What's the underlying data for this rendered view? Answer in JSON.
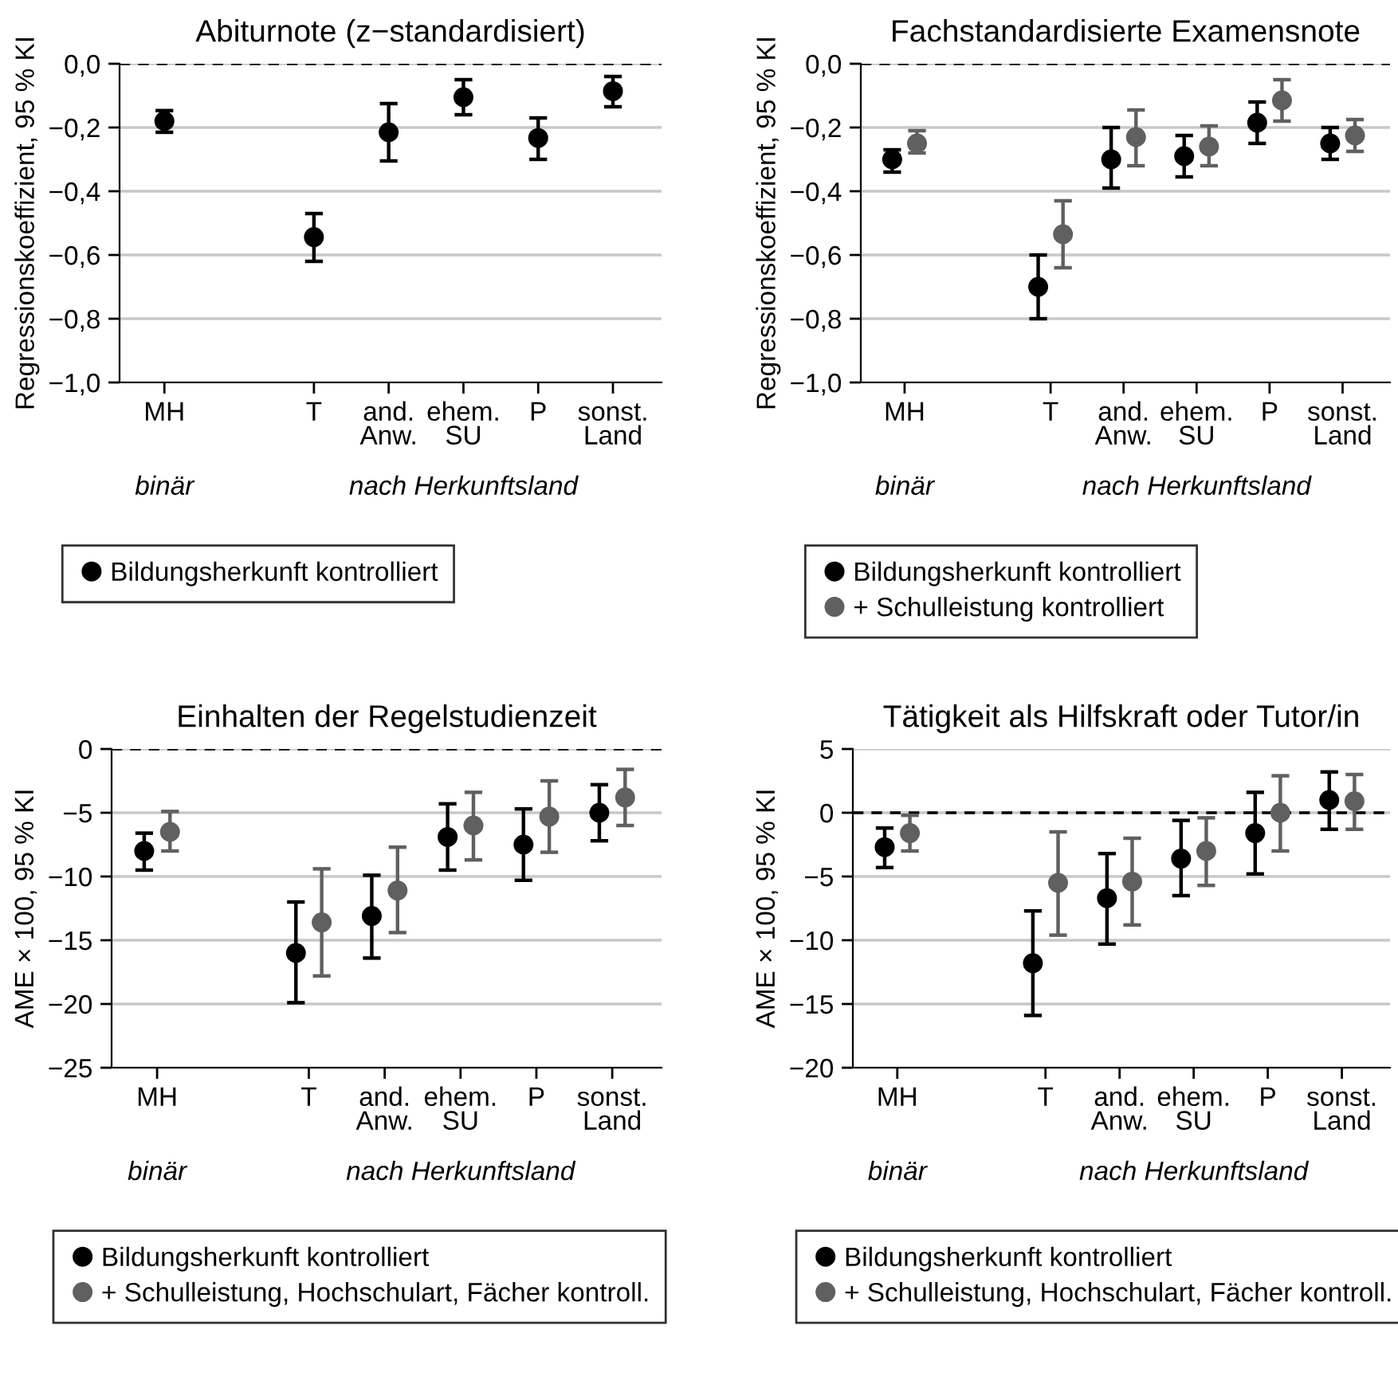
{
  "chart_data": [
    {
      "type": "scatter",
      "title": "Abiturnote (z−standardisiert)",
      "ylabel": "Regressionskoeffizient, 95 % KI",
      "categories": [
        "MH",
        null,
        "T",
        "and.\nAnw.",
        "ehem.\nSU",
        "P",
        "sonst.\nLand"
      ],
      "series": [
        {
          "name": "Bildungsherkunft kontrolliert",
          "color": "#000000",
          "values": [
            -0.18,
            null,
            -0.544,
            -0.215,
            -0.105,
            -0.233,
            -0.086
          ],
          "errors": [
            [
              -0.215,
              -0.147
            ],
            null,
            [
              -0.62,
              -0.47
            ],
            [
              -0.305,
              -0.125
            ],
            [
              -0.16,
              -0.05
            ],
            [
              -0.3,
              -0.17
            ],
            [
              -0.135,
              -0.04
            ]
          ]
        }
      ],
      "ylim": [
        -1.0,
        0.0
      ],
      "yticks": [
        {
          "value": -1.0,
          "label": "−1,0"
        },
        {
          "value": -0.8,
          "label": "−0,8"
        },
        {
          "value": -0.6,
          "label": "−0,6"
        },
        {
          "value": -0.4,
          "label": "−0,4"
        },
        {
          "value": -0.2,
          "label": "−0,2"
        },
        {
          "value": 0.0,
          "label": "0,0"
        }
      ],
      "ref_lines": [
        {
          "axis": "y",
          "value": 0,
          "line_style": "dashed",
          "color": "#000000"
        }
      ],
      "grid": "y",
      "legend": "bottom",
      "marker": "circle",
      "annotations": [
        "binär",
        "nach Herkunftsland"
      ]
    },
    {
      "type": "scatter",
      "title": "Fachstandardisierte Examensnote",
      "ylabel": "Regressionskoeffizient, 95 % KI",
      "categories": [
        "MH",
        null,
        "T",
        "and.\nAnw.",
        "ehem.\nSU",
        "P",
        "sonst.\nLand"
      ],
      "series": [
        {
          "name": "Bildungsherkunft kontrolliert",
          "color": "#000000",
          "values": [
            -0.3,
            null,
            -0.7,
            -0.3,
            -0.29,
            -0.185,
            -0.25
          ],
          "errors": [
            [
              -0.34,
              -0.27
            ],
            null,
            [
              -0.8,
              -0.6
            ],
            [
              -0.39,
              -0.2
            ],
            [
              -0.355,
              -0.225
            ],
            [
              -0.25,
              -0.12
            ],
            [
              -0.3,
              -0.2
            ]
          ]
        },
        {
          "name": "+ Schulleistung kontrolliert",
          "color": "#606060",
          "values": [
            -0.25,
            null,
            -0.535,
            -0.23,
            -0.26,
            -0.115,
            -0.225
          ],
          "errors": [
            [
              -0.28,
              -0.21
            ],
            null,
            [
              -0.64,
              -0.43
            ],
            [
              -0.32,
              -0.145
            ],
            [
              -0.32,
              -0.195
            ],
            [
              -0.18,
              -0.05
            ],
            [
              -0.275,
              -0.175
            ]
          ]
        }
      ],
      "ylim": [
        -1.0,
        0.0
      ],
      "yticks": [
        {
          "value": -1.0,
          "label": "−1,0"
        },
        {
          "value": -0.8,
          "label": "−0,8"
        },
        {
          "value": -0.6,
          "label": "−0,6"
        },
        {
          "value": -0.4,
          "label": "−0,4"
        },
        {
          "value": -0.2,
          "label": "−0,2"
        },
        {
          "value": 0.0,
          "label": "0,0"
        }
      ],
      "ref_lines": [
        {
          "axis": "y",
          "value": 0,
          "line_style": "dashed",
          "color": "#000000"
        }
      ],
      "grid": "y",
      "legend": "bottom",
      "marker": "circle",
      "annotations": [
        "binär",
        "nach Herkunftsland"
      ]
    },
    {
      "type": "scatter",
      "title": "Einhalten der Regelstudienzeit",
      "ylabel": "AME × 100, 95 % KI",
      "categories": [
        "MH",
        null,
        "T",
        "and.\nAnw.",
        "ehem.\nSU",
        "P",
        "sonst.\nLand"
      ],
      "series": [
        {
          "name": "Bildungsherkunft kontrolliert",
          "color": "#000000",
          "values": [
            -8.0,
            null,
            -16.0,
            -13.1,
            -6.9,
            -7.5,
            -5.0
          ],
          "errors": [
            [
              -9.5,
              -6.6
            ],
            null,
            [
              -19.9,
              -12.0
            ],
            [
              -16.4,
              -9.9
            ],
            [
              -9.5,
              -4.3
            ],
            [
              -10.3,
              -4.7
            ],
            [
              -7.2,
              -2.8
            ]
          ]
        },
        {
          "name": "+ Schulleistung, Hochschulart, Fächer kontroll.",
          "color": "#606060",
          "values": [
            -6.5,
            null,
            -13.6,
            -11.1,
            -6.0,
            -5.3,
            -3.8
          ],
          "errors": [
            [
              -8.0,
              -4.9
            ],
            null,
            [
              -17.8,
              -9.4
            ],
            [
              -14.4,
              -7.7
            ],
            [
              -8.7,
              -3.4
            ],
            [
              -8.1,
              -2.5
            ],
            [
              -6.0,
              -1.6
            ]
          ]
        }
      ],
      "ylim": [
        -25,
        0
      ],
      "yticks": [
        {
          "value": -25,
          "label": "−25"
        },
        {
          "value": -20,
          "label": "−20"
        },
        {
          "value": -15,
          "label": "−15"
        },
        {
          "value": -10,
          "label": "−10"
        },
        {
          "value": -5,
          "label": "−5"
        },
        0
      ],
      "ref_lines": [
        {
          "axis": "y",
          "value": 0,
          "line_style": "dashed",
          "color": "#000000"
        }
      ],
      "grid": "y",
      "legend": "bottom",
      "marker": "circle",
      "annotations": [
        "binär",
        "nach Herkunftsland"
      ]
    },
    {
      "type": "scatter",
      "title": "Tätigkeit als Hilfskraft oder Tutor/in",
      "ylabel": "AME × 100, 95 % KI",
      "categories": [
        "MH",
        null,
        "T",
        "and.\nAnw.",
        "ehem.\nSU",
        "P",
        "sonst.\nLand"
      ],
      "series": [
        {
          "name": "Bildungsherkunft kontrolliert",
          "color": "#000000",
          "values": [
            -2.7,
            null,
            -11.8,
            -6.7,
            -3.6,
            -1.6,
            1.0
          ],
          "errors": [
            [
              -4.3,
              -1.2
            ],
            null,
            [
              -15.9,
              -7.7
            ],
            [
              -10.3,
              -3.2
            ],
            [
              -6.5,
              -0.6
            ],
            [
              -4.8,
              1.6
            ],
            [
              -1.3,
              3.2
            ]
          ]
        },
        {
          "name": "+ Schulleistung, Hochschulart, Fächer kontroll.",
          "color": "#606060",
          "values": [
            -1.6,
            null,
            -5.5,
            -5.4,
            -3.0,
            0.0,
            0.9
          ],
          "errors": [
            [
              -3.0,
              -0.2
            ],
            null,
            [
              -9.6,
              -1.5
            ],
            [
              -8.8,
              -2.0
            ],
            [
              -5.7,
              -0.4
            ],
            [
              -3.0,
              2.9
            ],
            [
              -1.3,
              3.0
            ]
          ]
        }
      ],
      "ylim": [
        -20,
        5
      ],
      "yticks": [
        {
          "value": -20,
          "label": "−20"
        },
        {
          "value": -15,
          "label": "−15"
        },
        {
          "value": -10,
          "label": "−10"
        },
        {
          "value": -5,
          "label": "−5"
        },
        0,
        5
      ],
      "ref_lines": [
        {
          "axis": "y",
          "value": 0,
          "line_style": "dashed",
          "color": "#000000"
        }
      ],
      "grid": "y",
      "legend": "bottom",
      "marker": "circle",
      "annotations": [
        "binär",
        "nach Herkunftsland"
      ]
    }
  ]
}
